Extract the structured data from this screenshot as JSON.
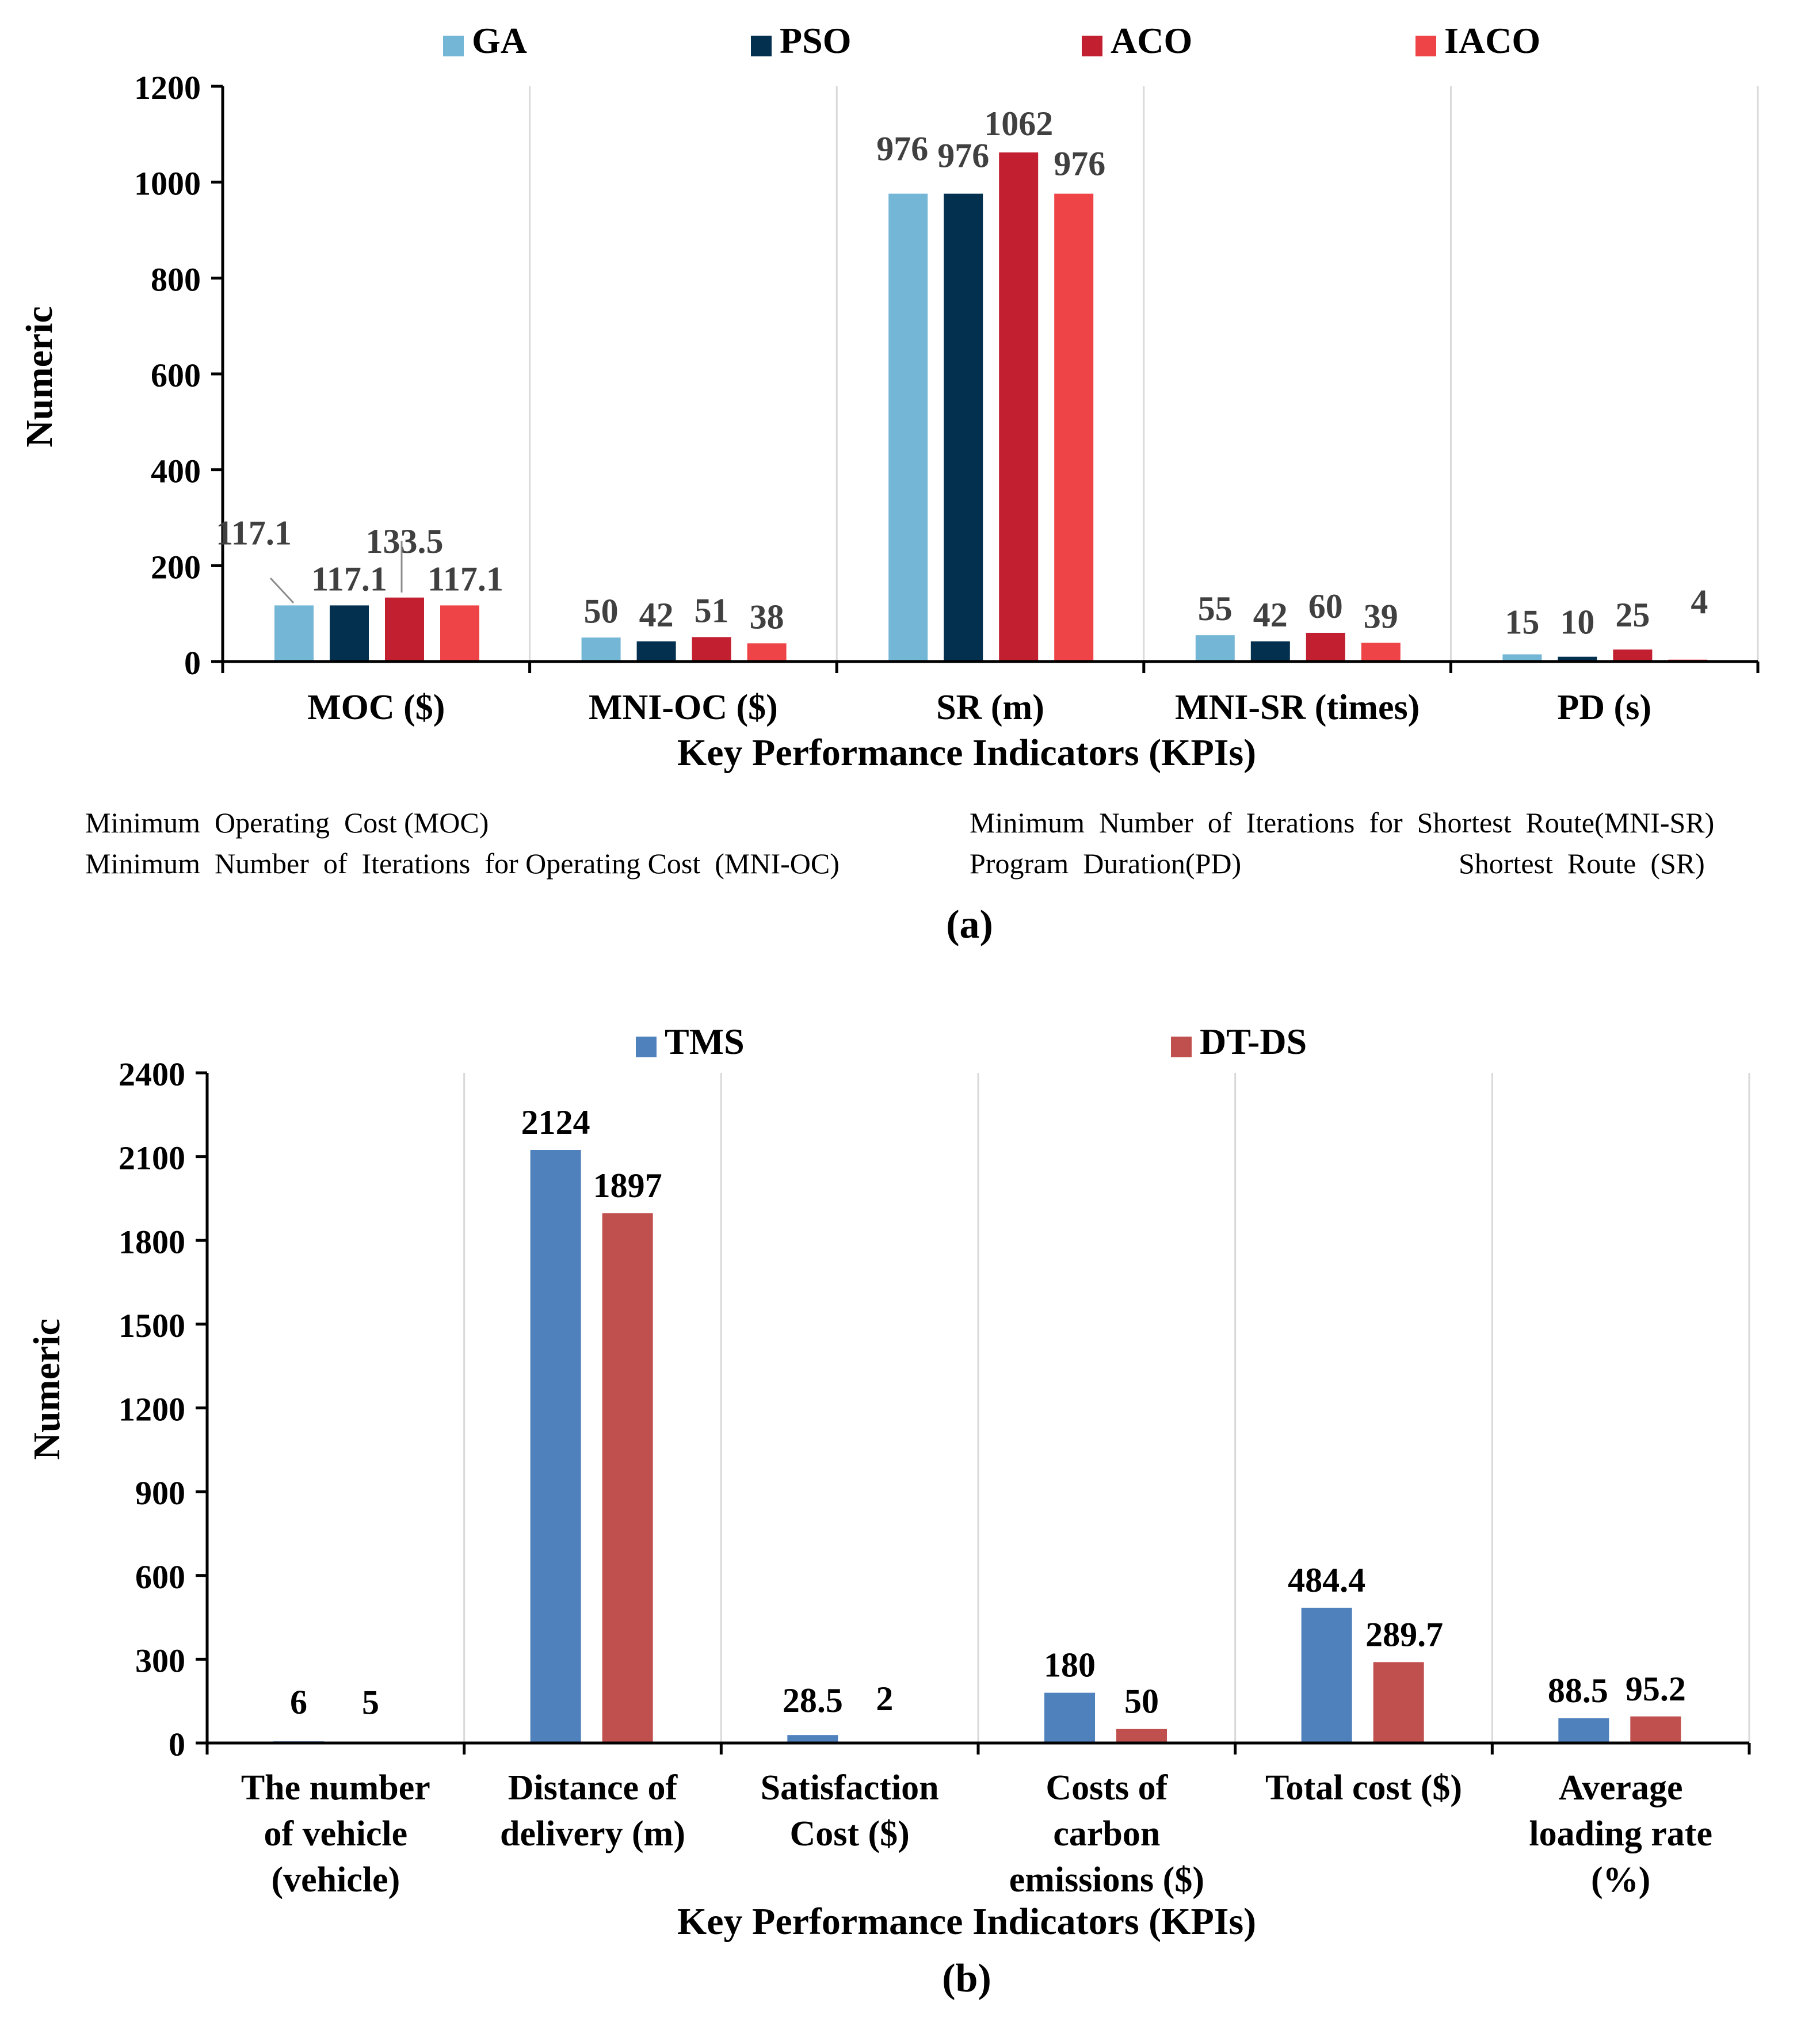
{
  "chart_data": [
    {
      "type": "bar",
      "panel_label": "(a)",
      "ylabel": "Numeric",
      "xlabel": "Key Performance Indicators (KPIs)",
      "ylim": [
        0,
        1200
      ],
      "yticks": [
        0,
        200,
        400,
        600,
        800,
        1000,
        1200
      ],
      "grid": "vertical",
      "legend_position": "top-center",
      "categories": [
        "MOC ($)",
        "MNI-OC ($)",
        "SR (m)",
        "MNI-SR (times)",
        "PD (s)"
      ],
      "series": [
        {
          "name": "GA",
          "color": "#74b6d6",
          "values": [
            117.1,
            50,
            976,
            55,
            15
          ]
        },
        {
          "name": "PSO",
          "color": "#04304f",
          "values": [
            117.1,
            42,
            976,
            42,
            10
          ]
        },
        {
          "name": "ACO",
          "color": "#c21f30",
          "values": [
            133.5,
            51,
            1062,
            60,
            25
          ]
        },
        {
          "name": "IACO",
          "color": "#ee4447",
          "values": [
            117.1,
            38,
            976,
            39,
            4
          ]
        }
      ],
      "value_labels": [
        [
          "117.1",
          "50",
          "976",
          "55",
          "15"
        ],
        [
          "117.1",
          "42",
          "976",
          "42",
          "10"
        ],
        [
          "133.5",
          "51",
          "1062",
          "60",
          "25"
        ],
        [
          "117.1",
          "38",
          "976",
          "39",
          "4"
        ]
      ],
      "notes": [
        "Minimum  Operating  Cost (MOC)",
        "Minimum  Number  of  Iterations  for Operating Cost  (MNI-OC)",
        "Minimum  Number  of  Iterations  for  Shortest  Route(MNI-SR)",
        "Program  Duration(PD)",
        "Shortest  Route  (SR)"
      ]
    },
    {
      "type": "bar",
      "panel_label": "(b)",
      "ylabel": "Numeric",
      "xlabel": "Key Performance Indicators (KPIs)",
      "ylim": [
        0,
        2400
      ],
      "yticks": [
        0,
        300,
        600,
        900,
        1200,
        1500,
        1800,
        2100,
        2400
      ],
      "grid": "vertical",
      "legend_position": "top-center",
      "categories": [
        [
          "The number",
          "of vehicle",
          "(vehicle)"
        ],
        [
          "Distance of",
          "delivery (m)"
        ],
        [
          "Satisfaction",
          "Cost  ($)"
        ],
        [
          "Costs of",
          "carbon",
          "emissions ($)"
        ],
        [
          "Total cost ($)"
        ],
        [
          "Average",
          "loading rate",
          "(%)"
        ]
      ],
      "series": [
        {
          "name": "TMS",
          "color": "#4f81bd",
          "values": [
            6,
            2124,
            28.5,
            180,
            484.4,
            88.5
          ]
        },
        {
          "name": "DT-DS",
          "color": "#c0504d",
          "values": [
            5,
            1897,
            2,
            50,
            289.7,
            95.2
          ]
        }
      ],
      "value_labels": [
        [
          "6",
          "2124",
          "28.5",
          "180",
          "484.4",
          "88.5"
        ],
        [
          "5",
          "1897",
          "2",
          "50",
          "289.7",
          "95.2"
        ]
      ]
    }
  ]
}
